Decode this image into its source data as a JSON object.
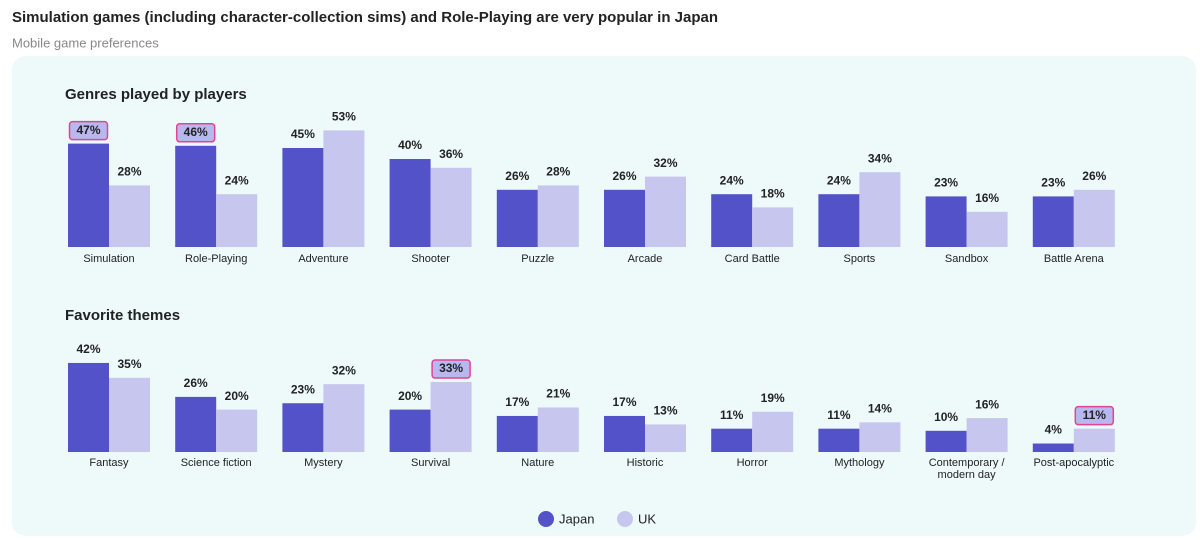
{
  "header": {
    "title": "Simulation games (including character-collection sims) and Role-Playing are very popular in Japan",
    "subtitle": "Mobile game preferences"
  },
  "chart_data": [
    {
      "type": "bar",
      "title": "Genres played by players",
      "categories": [
        "Simulation",
        "Role-Playing",
        "Adventure",
        "Shooter",
        "Puzzle",
        "Arcade",
        "Card Battle",
        "Sports",
        "Sandbox",
        "Battle Arena"
      ],
      "series": [
        {
          "name": "Japan",
          "color": "#5352c9",
          "values": [
            47,
            46,
            45,
            40,
            26,
            26,
            24,
            24,
            23,
            23
          ],
          "value_labels": [
            "47%",
            "46%",
            "45%",
            "40%",
            "26%",
            "26%",
            "24%",
            "24%",
            "23%",
            "23%"
          ],
          "highlight": [
            0,
            1
          ]
        },
        {
          "name": "UK",
          "color": "#c7c6ee",
          "values": [
            28,
            24,
            53,
            36,
            28,
            32,
            18,
            34,
            16,
            26
          ],
          "value_labels": [
            "28%",
            "24%",
            "53%",
            "36%",
            "28%",
            "32%",
            "18%",
            "34%",
            "16%",
            "26%"
          ],
          "highlight": []
        }
      ]
    },
    {
      "type": "bar",
      "title": "Favorite themes",
      "categories": [
        "Fantasy",
        "Science fiction",
        "Mystery",
        "Survival",
        "Nature",
        "Historic",
        "Horror",
        "Mythology",
        "Contemporary / modern day",
        "Post-apocalyptic"
      ],
      "series": [
        {
          "color": "#5352c9",
          "values": [
            42,
            26,
            23,
            20,
            17,
            17,
            11,
            11,
            10,
            4
          ],
          "value_labels": [
            "42%",
            "26%",
            "23%",
            "20%",
            "17%",
            "17%",
            "11%",
            "11%",
            "10%",
            "4%"
          ],
          "highlight": []
        },
        {
          "color": "#c7c6ee",
          "values": [
            35,
            20,
            32,
            33,
            21,
            13,
            19,
            14,
            16,
            11
          ],
          "value_labels": [
            "35%",
            "20%",
            "32%",
            "33%",
            "21%",
            "13%",
            "19%",
            "14%",
            "16%",
            "11%"
          ],
          "highlight": [
            3,
            9
          ]
        }
      ]
    }
  ]
}
